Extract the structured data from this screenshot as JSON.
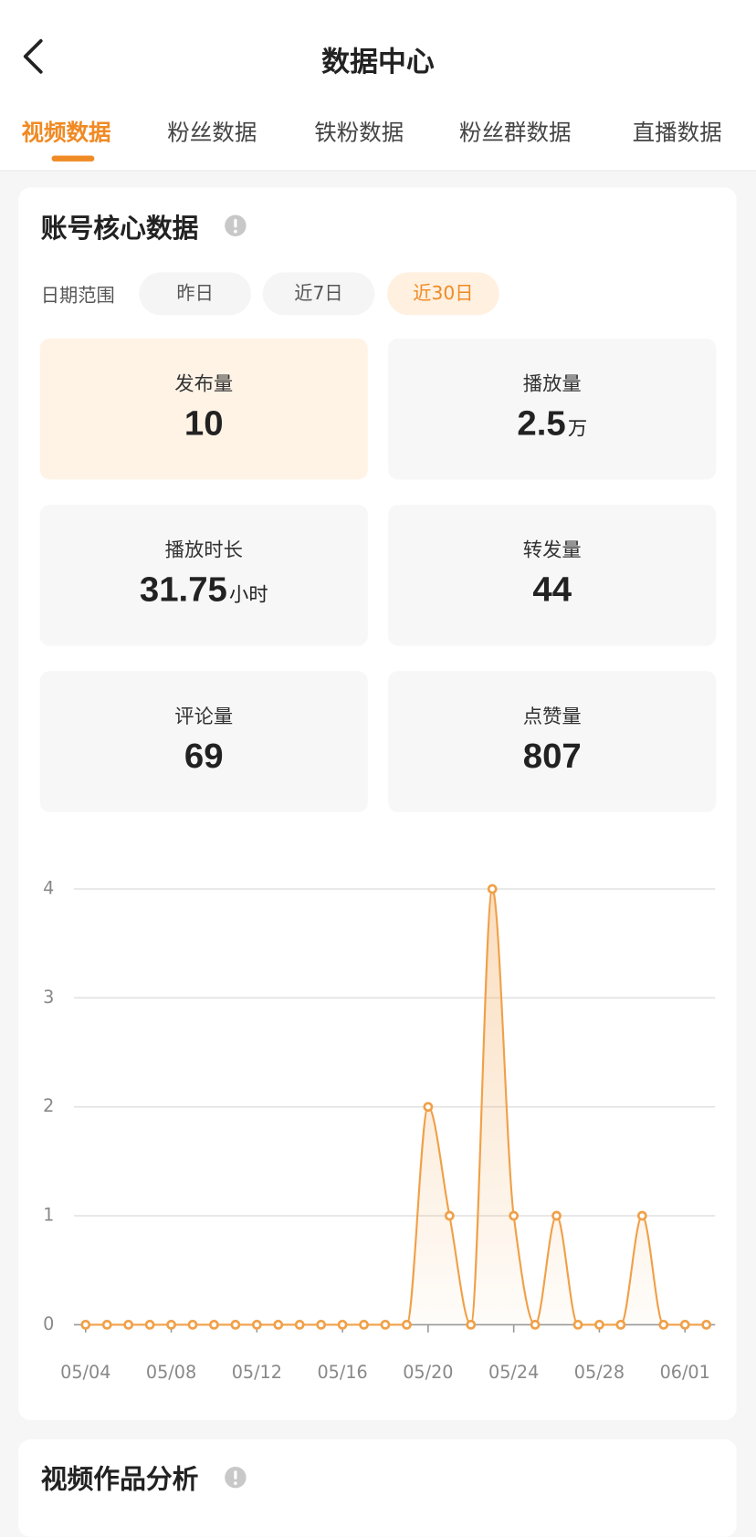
{
  "header": {
    "title": "数据中心"
  },
  "tabs": [
    "视频数据",
    "粉丝数据",
    "铁粉数据",
    "粉丝群数据",
    "直播数据"
  ],
  "core_card": {
    "title": "账号核心数据",
    "date_range": {
      "label": "日期范围",
      "options": [
        "昨日",
        "近7日",
        "近30日"
      ]
    },
    "metrics": [
      {
        "label": "发布量",
        "value": "10"
      },
      {
        "label": "播放量",
        "value": "2.5",
        "unit": "万"
      },
      {
        "label": "播放时长",
        "value": "31.75",
        "unit": "小时"
      },
      {
        "label": "转发量",
        "value": "44"
      },
      {
        "label": "评论量",
        "value": "69"
      },
      {
        "label": "点赞量",
        "value": "807"
      }
    ]
  },
  "chart_data": {
    "type": "line",
    "categories": [
      "05/04",
      null,
      null,
      null,
      "05/08",
      null,
      null,
      null,
      "05/12",
      null,
      null,
      null,
      "05/16",
      null,
      null,
      null,
      "05/20",
      null,
      null,
      null,
      "05/24",
      null,
      null,
      null,
      "05/28",
      null,
      null,
      null,
      "06/01",
      null
    ],
    "values": [
      0,
      0,
      0,
      0,
      0,
      0,
      0,
      0,
      0,
      0,
      0,
      0,
      0,
      0,
      0,
      0,
      2,
      1,
      0,
      4,
      1,
      0,
      1,
      0,
      0,
      0,
      1,
      0,
      0,
      0
    ],
    "color": "#f0a048",
    "ylim": [
      0,
      4
    ],
    "yticks": [
      0,
      1,
      2,
      3,
      4
    ],
    "grid": true
  },
  "works_card": {
    "title": "视频作品分析"
  }
}
